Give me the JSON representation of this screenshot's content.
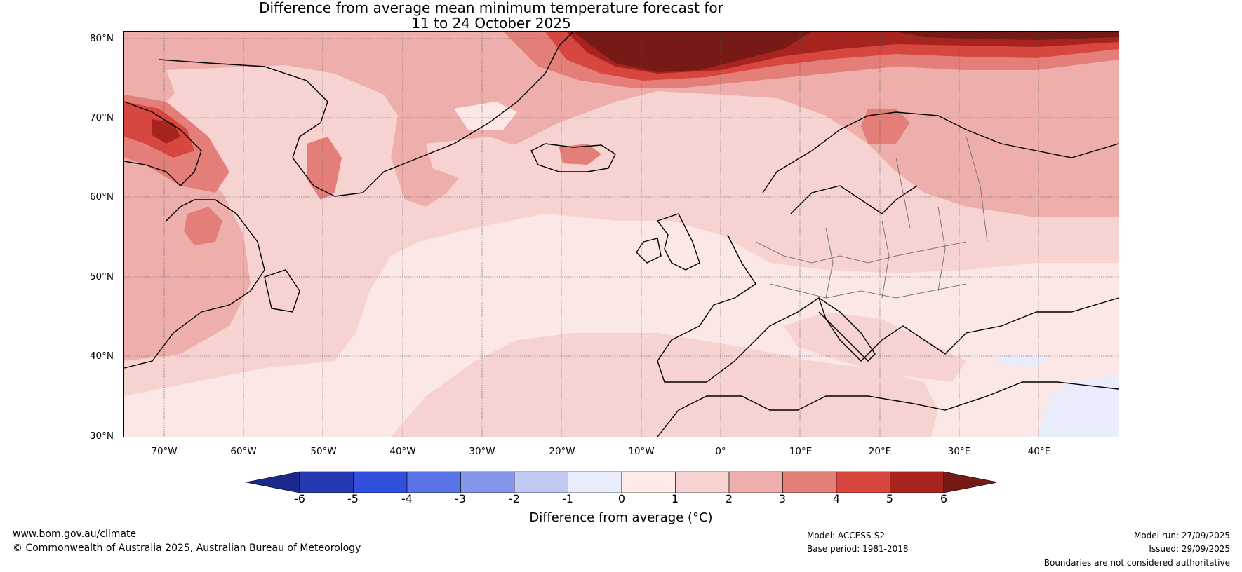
{
  "title": {
    "line1": "Difference from average mean minimum temperature forecast for",
    "line2": "11 to 24 October 2025"
  },
  "map": {
    "lat_labels": [
      "80°N",
      "70°N",
      "60°N",
      "50°N",
      "40°N",
      "30°N"
    ],
    "lon_labels": [
      "70°W",
      "60°W",
      "50°W",
      "40°W",
      "30°W",
      "20°W",
      "10°W",
      "0°",
      "10°E",
      "20°E",
      "30°E",
      "40°E"
    ],
    "lat_range": [
      30,
      80
    ],
    "lon_range": [
      -75,
      50
    ]
  },
  "legend": {
    "ticks": [
      "-6",
      "-5",
      "-4",
      "-3",
      "-2",
      "-1",
      "0",
      "1",
      "2",
      "3",
      "4",
      "5",
      "6"
    ],
    "colors": [
      "#1a2a8c",
      "#2639b0",
      "#2f4fdc",
      "#5a73e6",
      "#8396eb",
      "#c1c9f3",
      "#e8ecfb",
      "#fcebe9",
      "#f6d3d1",
      "#eeaeab",
      "#e47e79",
      "#d8473f",
      "#a8231e",
      "#771a15"
    ],
    "label": "Difference from average (°C)"
  },
  "footer": {
    "website": "www.bom.gov.au/climate",
    "copyright": "© Commonwealth of Australia 2025, Australian Bureau of Meteorology",
    "model": "Model: ACCESS-S2",
    "base_period": "Base period: 1981-2018",
    "model_run": "Model run: 27/09/2025",
    "issued": "Issued: 29/09/2025",
    "boundaries": "Boundaries are not considered authoritative"
  }
}
